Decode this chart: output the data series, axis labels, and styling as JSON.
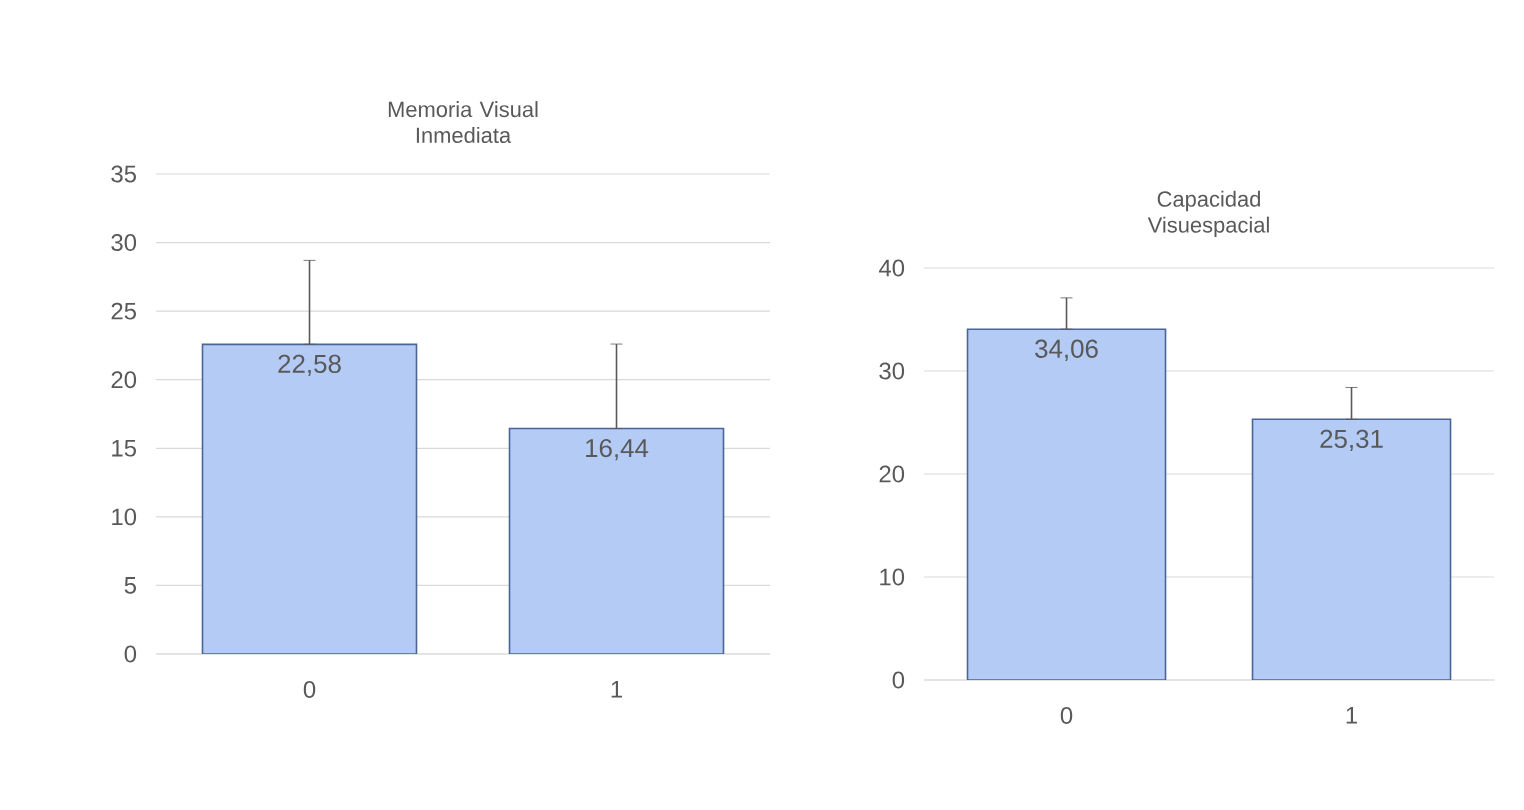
{
  "chart_data": [
    {
      "type": "bar",
      "title": "Memoria Visual Inmediata",
      "categories": [
        "0",
        "1"
      ],
      "values": [
        22.58,
        16.44
      ],
      "color": "#b4cbf5",
      "errors": [
        [
          22.58,
          28.7
        ],
        [
          16.44,
          22.6
        ]
      ],
      "value_labels": [
        "22,58",
        "16,44"
      ],
      "ylim": [
        0,
        35
      ],
      "yticks": [
        0,
        5,
        10,
        15,
        20,
        25,
        30,
        35
      ],
      "grid": "y"
    },
    {
      "type": "bar",
      "title": "Capacidad Visuespacial",
      "categories": [
        "0",
        "1"
      ],
      "values": [
        34.06,
        25.31
      ],
      "color": "#b4cbf5",
      "errors": [
        [
          34.06,
          37.1
        ],
        [
          25.31,
          28.4
        ]
      ],
      "value_labels": [
        "34,06",
        "25,31"
      ],
      "ylim": [
        0,
        40
      ],
      "yticks": [
        0,
        10,
        20,
        30,
        40
      ],
      "grid": "y"
    }
  ]
}
